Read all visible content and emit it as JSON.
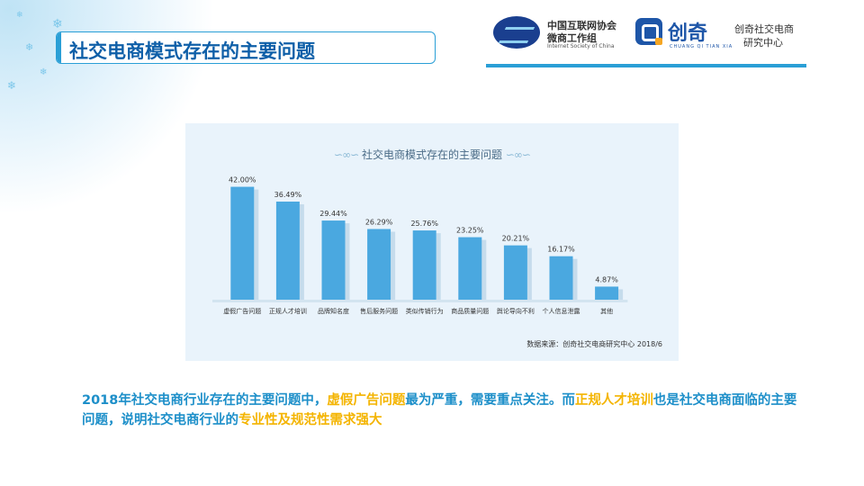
{
  "header": {
    "title": "社交电商模式存在的主要问题",
    "logo_internet_society": {
      "line1": "中国互联网协会",
      "line2": "微商工作组",
      "line3": "Internet Society of China"
    },
    "logo_chuangqi": {
      "brand": "创奇",
      "brand_sub": "CHUANG  QI  TIAN  XIA",
      "side_line1": "创奇社交电商",
      "side_line2": "研究中心"
    }
  },
  "chart_data": {
    "type": "bar",
    "title": "社交电商模式存在的主要问题",
    "categories": [
      "虚假广告问题",
      "正规人才培训",
      "品牌知名度",
      "售后服务问题",
      "类似传销行为",
      "商品质量问题",
      "舆论导向不利",
      "个人信息泄露",
      "其他"
    ],
    "values": [
      42.0,
      36.49,
      29.44,
      26.29,
      25.76,
      23.25,
      20.21,
      16.17,
      4.87
    ],
    "data_labels": [
      "42.00%",
      "36.49%",
      "29.44%",
      "26.29%",
      "25.76%",
      "23.25%",
      "20.21%",
      "16.17%",
      "4.87%"
    ],
    "ylim": [
      0,
      45
    ],
    "grid": false,
    "bar_color": "#4aa8e0",
    "source": "数据来源：创奇社交电商研究中心 2018/6"
  },
  "summary": {
    "s1": "2018年社交电商行业存在的主要问题中，",
    "s2": "虚假广告问题",
    "s3": "最为严重，需要重点关注。而",
    "s4": "正规人才培训",
    "s5": "也是社交电商面临的主要问题，说明社交电商行业的",
    "s6": "专业性及规范性需求强大"
  },
  "colors": {
    "title_blue": "#0e5fa8",
    "accent_blue": "#2a9fd6",
    "summary_blue": "#1d8fc9",
    "highlight_yellow": "#f4b400"
  }
}
